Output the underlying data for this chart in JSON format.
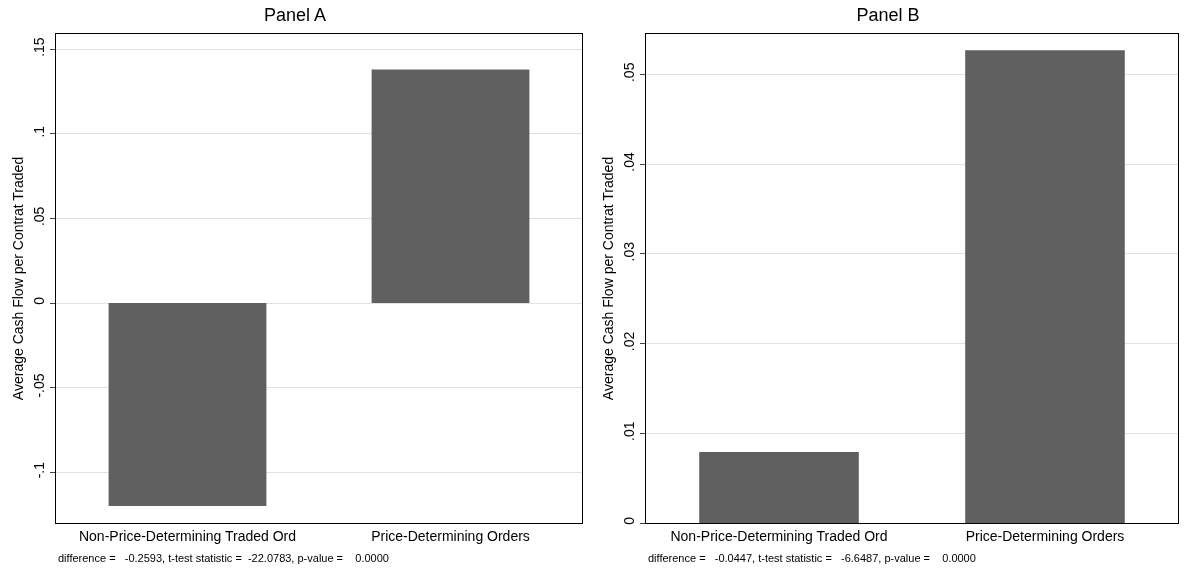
{
  "chart_data": [
    {
      "type": "bar",
      "title": "Panel A",
      "ylabel": "Average Cash Flow per Contrat Traded",
      "categories": [
        "Non-Price-Determining Traded Ord",
        "Price-Determining Orders"
      ],
      "values": [
        -0.12,
        0.138
      ],
      "color": "#606060",
      "ylim": [
        -0.13,
        0.159
      ],
      "yticks": [
        {
          "value": -0.1,
          "label": "-.1"
        },
        {
          "value": -0.05,
          "label": "-.05"
        },
        0,
        {
          "value": 0.05,
          "label": ".05"
        },
        {
          "value": 0.1,
          "label": ".1"
        },
        {
          "value": 0.15,
          "label": ".15"
        }
      ],
      "grid": "y",
      "annotations": [
        "difference =   -0.2593, t-test statistic =  -22.0783, p-value =    0.0000"
      ]
    },
    {
      "type": "bar",
      "title": "Panel B",
      "ylabel": "Average Cash Flow per Contrat Traded",
      "categories": [
        "Non-Price-Determining Traded Ord",
        "Price-Determining Orders"
      ],
      "values": [
        0.0079,
        0.0527
      ],
      "color": "#606060",
      "ylim": [
        0,
        0.0545
      ],
      "yticks": [
        0,
        {
          "value": 0.01,
          "label": ".01"
        },
        {
          "value": 0.02,
          "label": ".02"
        },
        {
          "value": 0.03,
          "label": ".03"
        },
        {
          "value": 0.04,
          "label": ".04"
        },
        {
          "value": 0.05,
          "label": ".05"
        }
      ],
      "grid": "y",
      "annotations": [
        "difference =   -0.0447, t-test statistic =   -6.6487, p-value =    0.0000"
      ]
    }
  ]
}
